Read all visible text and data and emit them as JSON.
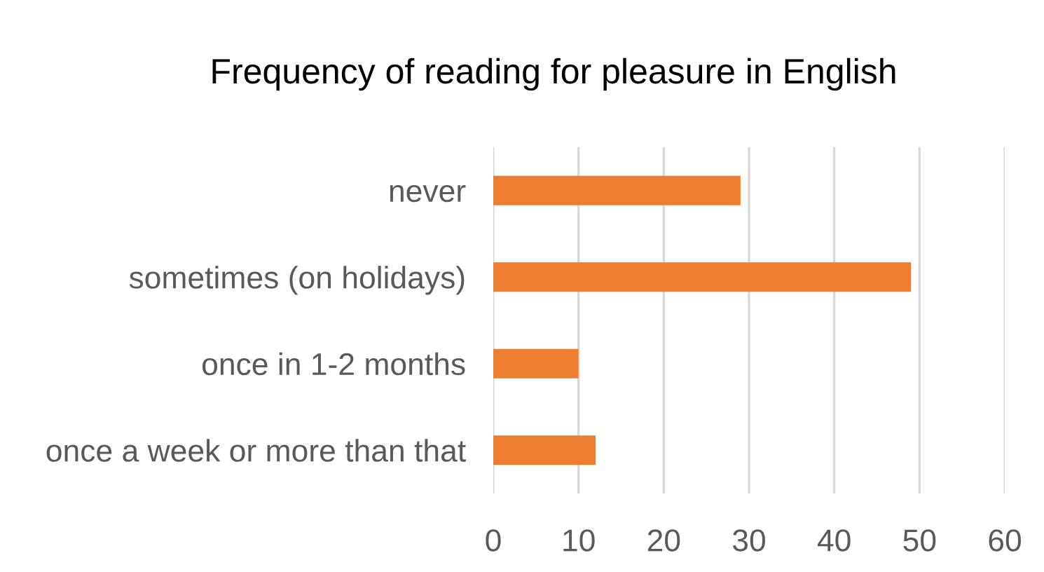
{
  "chart_data": {
    "type": "bar",
    "orientation": "horizontal",
    "title": "Frequency of reading for pleasure in English",
    "categories": [
      "never",
      "sometimes (on holidays)",
      "once in 1-2 months",
      "once a week or more than that"
    ],
    "values": [
      29,
      49,
      10,
      12
    ],
    "color": "#ed7d31",
    "xlim": [
      0,
      60
    ],
    "xticks": [
      0,
      10,
      20,
      30,
      40,
      50,
      60
    ],
    "grid": "x"
  }
}
